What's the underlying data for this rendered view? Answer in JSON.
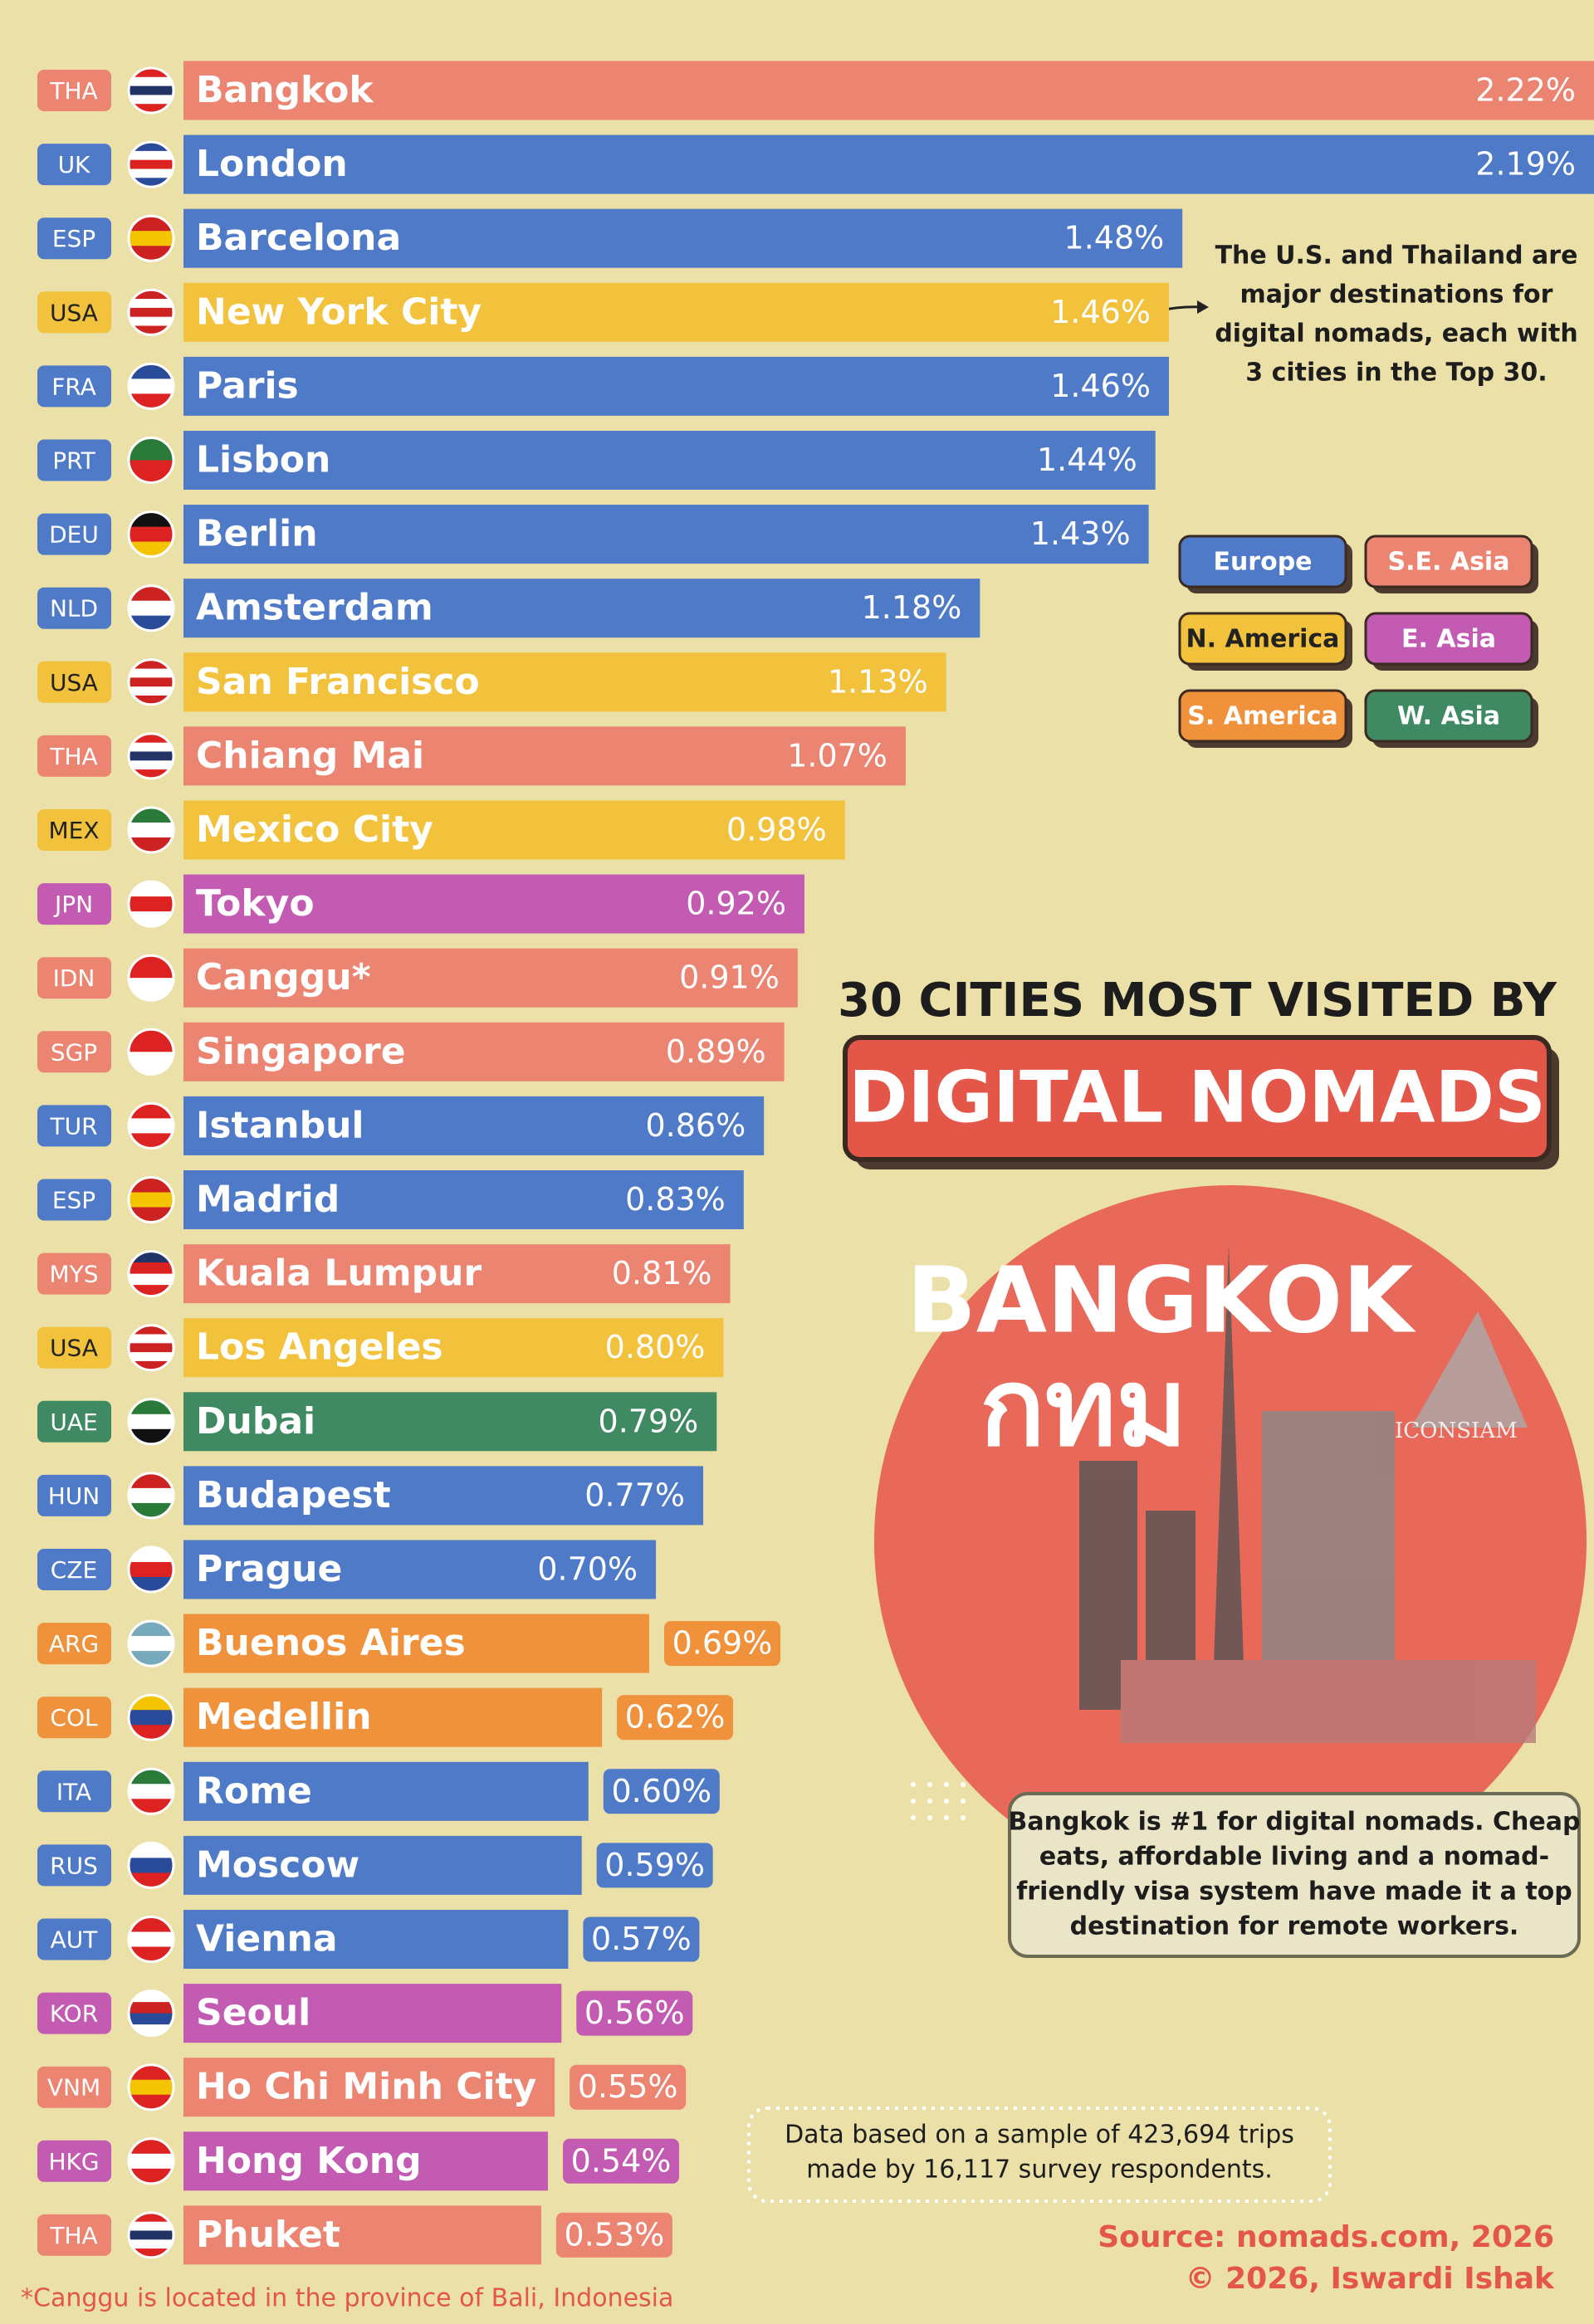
{
  "chart_data": {
    "type": "bar",
    "orientation": "horizontal",
    "title": "30 CITIES MOST VISITED BY",
    "subtitle": "DIGITAL NOMADS",
    "categories": [
      "Bangkok",
      "London",
      "Barcelona",
      "New York City",
      "Paris",
      "Lisbon",
      "Berlin",
      "Amsterdam",
      "San Francisco",
      "Chiang Mai",
      "Mexico City",
      "Tokyo",
      "Canggu*",
      "Singapore",
      "Istanbul",
      "Madrid",
      "Kuala Lumpur",
      "Los Angeles",
      "Dubai",
      "Budapest",
      "Prague",
      "Buenos Aires",
      "Medellin",
      "Rome",
      "Moscow",
      "Vienna",
      "Seoul",
      "Ho Chi Minh City",
      "Hong Kong",
      "Phuket"
    ],
    "country_codes": [
      "THA",
      "UK",
      "ESP",
      "USA",
      "FRA",
      "PRT",
      "DEU",
      "NLD",
      "USA",
      "THA",
      "MEX",
      "JPN",
      "IDN",
      "SGP",
      "TUR",
      "ESP",
      "MYS",
      "USA",
      "UAE",
      "HUN",
      "CZE",
      "ARG",
      "COL",
      "ITA",
      "RUS",
      "AUT",
      "KOR",
      "VNM",
      "HKG",
      "THA"
    ],
    "values": [
      2.22,
      2.19,
      1.48,
      1.46,
      1.46,
      1.44,
      1.43,
      1.18,
      1.13,
      1.07,
      0.98,
      0.92,
      0.91,
      0.89,
      0.86,
      0.83,
      0.81,
      0.8,
      0.79,
      0.77,
      0.7,
      0.69,
      0.62,
      0.6,
      0.59,
      0.57,
      0.56,
      0.55,
      0.54,
      0.53
    ],
    "value_labels": [
      "2.22%",
      "2.19%",
      "1.48%",
      "1.46%",
      "1.46%",
      "1.44%",
      "1.43%",
      "1.18%",
      "1.13%",
      "1.07%",
      "0.98%",
      "0.92%",
      "0.91%",
      "0.89%",
      "0.86%",
      "0.83%",
      "0.81%",
      "0.80%",
      "0.79%",
      "0.77%",
      "0.70%",
      "0.69%",
      "0.62%",
      "0.60%",
      "0.59%",
      "0.57%",
      "0.56%",
      "0.55%",
      "0.54%",
      "0.53%"
    ],
    "colors": [
      "#ec8472",
      "#4f7ac8",
      "#4f7ac8",
      "#f2c23c",
      "#4f7ac8",
      "#4f7ac8",
      "#4f7ac8",
      "#4f7ac8",
      "#f2c23c",
      "#ec8472",
      "#f2c23c",
      "#c35bb3",
      "#ec8472",
      "#ec8472",
      "#4f7ac8",
      "#4f7ac8",
      "#ec8472",
      "#f2c23c",
      "#3f8a63",
      "#4f7ac8",
      "#4f7ac8",
      "#f0913b",
      "#f0913b",
      "#4f7ac8",
      "#4f7ac8",
      "#4f7ac8",
      "#c35bb3",
      "#ec8472",
      "#c35bb3",
      "#ec8472"
    ],
    "legend": [
      {
        "name": "Europe",
        "color": "#4f7ac8"
      },
      {
        "name": "S.E. Asia",
        "color": "#ec8472"
      },
      {
        "name": "N. America",
        "color": "#f2c23c"
      },
      {
        "name": "E. Asia",
        "color": "#c35bb3"
      },
      {
        "name": "S. America",
        "color": "#f0913b"
      },
      {
        "name": "W. Asia",
        "color": "#3f8a63"
      }
    ],
    "annotation": [
      "The U.S. and Thailand are",
      "major destinations for",
      "digital nomads, each with",
      "3 cities in the Top 30."
    ],
    "feature": {
      "title": "BANGKOK",
      "thai": "กทม",
      "landmark": "ICONSIAM"
    },
    "note": [
      "Bangkok is #1 for digital nomads. Cheap",
      "eats, affordable living and a nomad-",
      "friendly visa system have made it a top",
      "destination for remote workers."
    ],
    "sample_note": [
      "Data based on a sample of 423,694 trips",
      "made by 16,117 survey respondents."
    ],
    "source": "Source: nomads.com, 2026",
    "credit": "© 2026, Iswardi Ishak",
    "footnote": "*Canggu is located in the province of Bali, Indonesia"
  }
}
